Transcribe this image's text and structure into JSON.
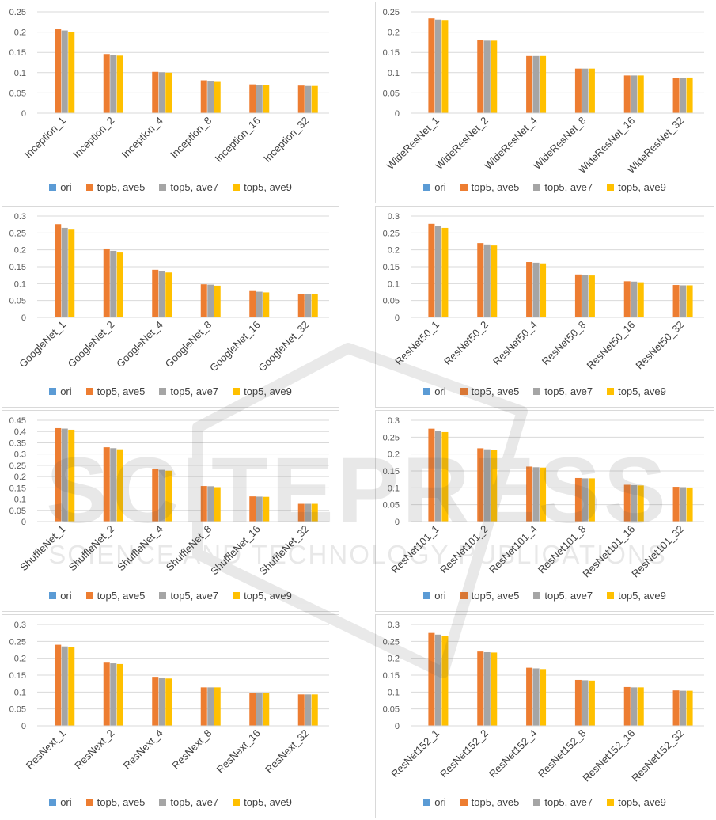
{
  "legend": {
    "items": [
      {
        "name": "ori",
        "color": "#5b9bd5"
      },
      {
        "name": "top5, ave5",
        "color": "#ed7d31"
      },
      {
        "name": "top5, ave7",
        "color": "#a5a5a5"
      },
      {
        "name": "top5, ave9",
        "color": "#ffc000"
      }
    ]
  },
  "watermark": {
    "logo_text": "SCITEPRESS",
    "sub_text": "SCIENCE AND TECHNOLOGY PUBLICATIONS"
  },
  "chart_data": [
    {
      "type": "bar",
      "title": "",
      "categories": [
        "Inception_1",
        "Inception_2",
        "Inception_4",
        "Inception_8",
        "Inception_16",
        "Inception_32"
      ],
      "ylim": [
        0,
        0.25
      ],
      "yticks": [
        "0",
        "0.05",
        "0.1",
        "0.15",
        "0.2",
        "0.25"
      ],
      "grid": true,
      "legend_position": "bottom",
      "series": [
        {
          "name": "ori",
          "values": [
            0,
            0,
            0,
            0,
            0,
            0
          ]
        },
        {
          "name": "top5, ave5",
          "values": [
            0.207,
            0.146,
            0.102,
            0.081,
            0.071,
            0.068
          ]
        },
        {
          "name": "top5, ave7",
          "values": [
            0.204,
            0.144,
            0.101,
            0.08,
            0.07,
            0.067
          ]
        },
        {
          "name": "top5, ave9",
          "values": [
            0.201,
            0.142,
            0.1,
            0.079,
            0.069,
            0.067
          ]
        }
      ]
    },
    {
      "type": "bar",
      "title": "",
      "categories": [
        "WideResNet_1",
        "WideResNet_2",
        "WideResNet_4",
        "WideResNet_8",
        "WideResNet_16",
        "WideResNet_32"
      ],
      "ylim": [
        0,
        0.25
      ],
      "yticks": [
        "0",
        "0.05",
        "0.1",
        "0.15",
        "0.2",
        "0.25"
      ],
      "grid": true,
      "legend_position": "bottom",
      "series": [
        {
          "name": "ori",
          "values": [
            0,
            0,
            0,
            0,
            0,
            0
          ]
        },
        {
          "name": "top5, ave5",
          "values": [
            0.234,
            0.18,
            0.141,
            0.11,
            0.093,
            0.087
          ]
        },
        {
          "name": "top5, ave7",
          "values": [
            0.231,
            0.179,
            0.141,
            0.11,
            0.093,
            0.087
          ]
        },
        {
          "name": "top5, ave9",
          "values": [
            0.23,
            0.179,
            0.141,
            0.11,
            0.093,
            0.088
          ]
        }
      ]
    },
    {
      "type": "bar",
      "title": "",
      "categories": [
        "GoogleNet_1",
        "GoogleNet_2",
        "GoogleNet_4",
        "GoogleNet_8",
        "GoogleNet_16",
        "GoogleNet_32"
      ],
      "ylim": [
        0,
        0.3
      ],
      "yticks": [
        "0",
        "0.05",
        "0.1",
        "0.15",
        "0.2",
        "0.25",
        "0.3"
      ],
      "grid": true,
      "legend_position": "bottom",
      "series": [
        {
          "name": "ori",
          "values": [
            0,
            0,
            0,
            0,
            0,
            0
          ]
        },
        {
          "name": "top5, ave5",
          "values": [
            0.276,
            0.204,
            0.141,
            0.098,
            0.078,
            0.07
          ]
        },
        {
          "name": "top5, ave7",
          "values": [
            0.265,
            0.197,
            0.137,
            0.097,
            0.076,
            0.069
          ]
        },
        {
          "name": "top5, ave9",
          "values": [
            0.262,
            0.192,
            0.133,
            0.094,
            0.074,
            0.068
          ]
        }
      ]
    },
    {
      "type": "bar",
      "title": "",
      "categories": [
        "ResNet50_1",
        "ResNet50_2",
        "ResNet50_4",
        "ResNet50_8",
        "ResNet50_16",
        "ResNet50_32"
      ],
      "ylim": [
        0,
        0.3
      ],
      "yticks": [
        "0",
        "0.05",
        "0.1",
        "0.15",
        "0.2",
        "0.25",
        "0.3"
      ],
      "grid": true,
      "legend_position": "bottom",
      "series": [
        {
          "name": "ori",
          "values": [
            0,
            0,
            0,
            0,
            0,
            0
          ]
        },
        {
          "name": "top5, ave5",
          "values": [
            0.277,
            0.22,
            0.164,
            0.127,
            0.107,
            0.096
          ]
        },
        {
          "name": "top5, ave7",
          "values": [
            0.27,
            0.216,
            0.162,
            0.125,
            0.106,
            0.095
          ]
        },
        {
          "name": "top5, ave9",
          "values": [
            0.265,
            0.213,
            0.16,
            0.124,
            0.104,
            0.095
          ]
        }
      ]
    },
    {
      "type": "bar",
      "title": "",
      "categories": [
        "ShuffleNet_1",
        "ShuffleNet_2",
        "ShuffleNet_4",
        "ShuffleNet_8",
        "ShuffleNet_16",
        "ShuffleNet_32"
      ],
      "ylim": [
        0,
        0.45
      ],
      "yticks": [
        "0",
        "0.05",
        "0.1",
        "0.15",
        "0.2",
        "0.25",
        "0.3",
        "0.35",
        "0.4",
        "0.45"
      ],
      "grid": true,
      "legend_position": "bottom",
      "series": [
        {
          "name": "ori",
          "values": [
            0,
            0,
            0,
            0,
            0,
            0
          ]
        },
        {
          "name": "top5, ave5",
          "values": [
            0.415,
            0.33,
            0.232,
            0.158,
            0.112,
            0.079
          ]
        },
        {
          "name": "top5, ave7",
          "values": [
            0.413,
            0.326,
            0.23,
            0.157,
            0.111,
            0.079
          ]
        },
        {
          "name": "top5, ave9",
          "values": [
            0.408,
            0.321,
            0.226,
            0.153,
            0.11,
            0.079
          ]
        }
      ]
    },
    {
      "type": "bar",
      "title": "",
      "categories": [
        "ResNet101_1",
        "ResNet101_2",
        "ResNet101_4",
        "ResNet101_8",
        "ResNet101_16",
        "ResNet101_32"
      ],
      "ylim": [
        0,
        0.3
      ],
      "yticks": [
        "0",
        "0.05",
        "0.1",
        "0.15",
        "0.2",
        "0.25",
        "0.3"
      ],
      "grid": true,
      "legend_position": "bottom",
      "series": [
        {
          "name": "ori",
          "values": [
            0,
            0,
            0,
            0,
            0,
            0
          ]
        },
        {
          "name": "top5, ave5",
          "values": [
            0.275,
            0.217,
            0.163,
            0.129,
            0.109,
            0.103
          ]
        },
        {
          "name": "top5, ave7",
          "values": [
            0.268,
            0.214,
            0.161,
            0.128,
            0.108,
            0.102
          ]
        },
        {
          "name": "top5, ave9",
          "values": [
            0.265,
            0.212,
            0.16,
            0.128,
            0.107,
            0.101
          ]
        }
      ]
    },
    {
      "type": "bar",
      "title": "",
      "categories": [
        "ResNext_1",
        "ResNext_2",
        "ResNext_4",
        "ResNext_8",
        "ResNext_16",
        "ResNext_32"
      ],
      "ylim": [
        0,
        0.3
      ],
      "yticks": [
        "0",
        "0.05",
        "0.1",
        "0.15",
        "0.2",
        "0.25",
        "0.3"
      ],
      "grid": true,
      "legend_position": "bottom",
      "series": [
        {
          "name": "ori",
          "values": [
            0,
            0,
            0,
            0,
            0,
            0
          ]
        },
        {
          "name": "top5, ave5",
          "values": [
            0.24,
            0.187,
            0.145,
            0.114,
            0.098,
            0.093
          ]
        },
        {
          "name": "top5, ave7",
          "values": [
            0.235,
            0.185,
            0.143,
            0.114,
            0.098,
            0.093
          ]
        },
        {
          "name": "top5, ave9",
          "values": [
            0.233,
            0.183,
            0.14,
            0.114,
            0.098,
            0.093
          ]
        }
      ]
    },
    {
      "type": "bar",
      "title": "",
      "categories": [
        "ResNet152_1",
        "ResNet152_2",
        "ResNet152_4",
        "ResNet152_8",
        "ResNet152_16",
        "ResNet152_32"
      ],
      "ylim": [
        0,
        0.3
      ],
      "yticks": [
        "0",
        "0.05",
        "0.1",
        "0.15",
        "0.2",
        "0.25",
        "0.3"
      ],
      "grid": true,
      "legend_position": "bottom",
      "series": [
        {
          "name": "ori",
          "values": [
            0,
            0,
            0,
            0,
            0,
            0
          ]
        },
        {
          "name": "top5, ave5",
          "values": [
            0.275,
            0.22,
            0.172,
            0.136,
            0.115,
            0.105
          ]
        },
        {
          "name": "top5, ave7",
          "values": [
            0.27,
            0.218,
            0.17,
            0.135,
            0.114,
            0.104
          ]
        },
        {
          "name": "top5, ave9",
          "values": [
            0.266,
            0.217,
            0.168,
            0.134,
            0.114,
            0.104
          ]
        }
      ]
    }
  ]
}
